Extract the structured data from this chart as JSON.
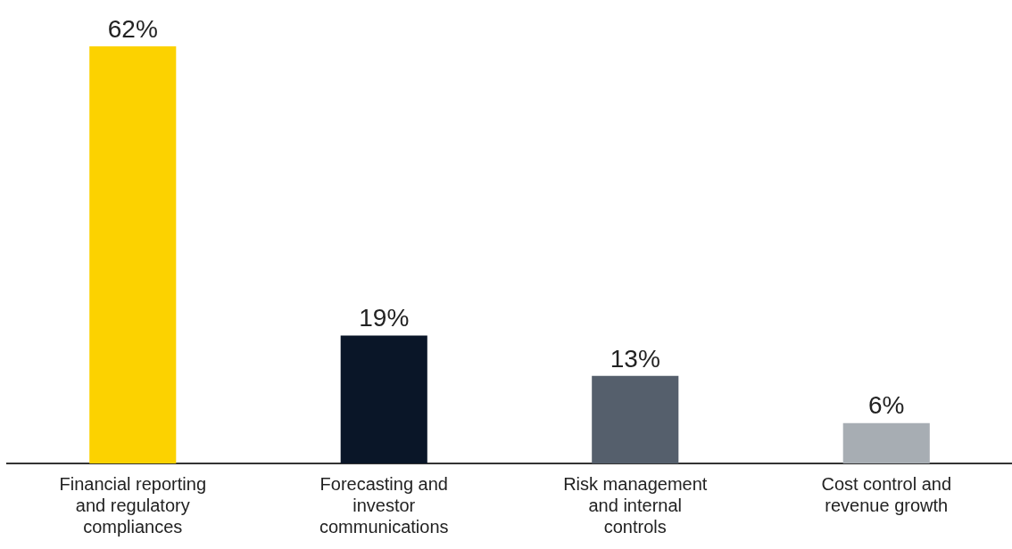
{
  "chart_data": {
    "type": "bar",
    "categories": [
      "Financial reporting and regulatory compliances",
      "Forecasting and investor communications",
      "Risk management and internal controls",
      "Cost control and revenue growth"
    ],
    "values": [
      62,
      19,
      13,
      6
    ],
    "colors": [
      "#fcd200",
      "#0a1628",
      "#555f6c",
      "#a7adb3"
    ],
    "value_labels": [
      "62%",
      "19%",
      "13%",
      "6%"
    ],
    "legend": false,
    "grid": false
  }
}
